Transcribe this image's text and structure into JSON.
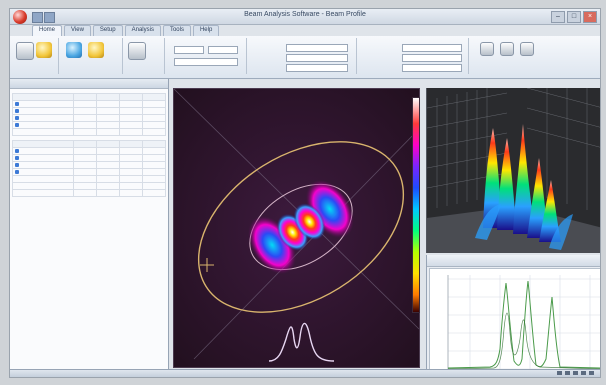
{
  "window": {
    "title": "Beam Analysis Software - Beam Profile",
    "minimize": "–",
    "maximize": "□",
    "close": "×"
  },
  "ribbon": {
    "tabs": [
      "Home",
      "View",
      "Setup",
      "Analysis",
      "Tools",
      "Help"
    ],
    "active_tab": 0
  },
  "left_panel": {
    "title": "",
    "section_1": "",
    "section_2": "",
    "results": [],
    "list_items": []
  },
  "views": {
    "colorbar_colors": [
      "#ffffff",
      "#ff3a3a",
      "#ff00c8",
      "#7a25ff",
      "#1d4cff",
      "#00c8ff",
      "#00ff7f",
      "#b4ff00",
      "#ffdf00",
      "#ff7a00",
      "#3a0000"
    ],
    "main_bg": "#2b1428",
    "ellipse_color": "#d9b46d",
    "profile_color": "#e7d6f2",
    "plot_panel_title": "",
    "plot_line_colors": [
      "#4a9a4a",
      "#2c6b2c"
    ]
  },
  "status": {
    "left": "",
    "right_icons": [
      "grid-icon",
      "zoom-icon",
      "camera-icon",
      "settings-icon",
      "info-icon"
    ]
  }
}
